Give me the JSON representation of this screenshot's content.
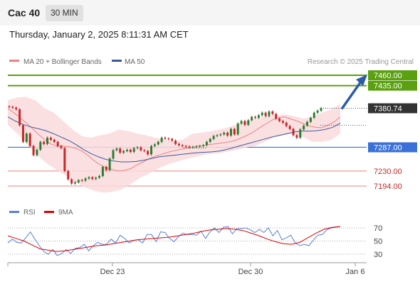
{
  "header": {
    "symbol": "Cac 40",
    "interval": "30 MIN",
    "timestamp": "Thursday, January 2, 2025 8:11:31 AM CET"
  },
  "legend": {
    "ma20_label": "MA 20 + Bollinger Bands",
    "ma50_label": "MA 50",
    "ma20_color": "#f08080",
    "ma50_color": "#3a5a9a",
    "copyright": "Research © 2025 Trading Central"
  },
  "rsi_legend": {
    "rsi_label": "RSI",
    "ma_label": "9MA",
    "rsi_color": "#5a7fd8",
    "ma_color": "#e00000"
  },
  "colors": {
    "up": "#2e7d32",
    "down": "#c62828",
    "resistance": "#5aa010",
    "pivot": "#3a70d8",
    "support": "#f08080",
    "current": "#333333",
    "band": "#fadadd",
    "arrow": "#2a5caa"
  },
  "chart_data": [
    {
      "type": "candlestick",
      "title": "",
      "x_ticks": [
        "Dec 23",
        "Dec 30",
        "Jan 6"
      ],
      "ylim": [
        7175,
        7475
      ],
      "price_levels": [
        {
          "value": 7460.0,
          "label": "7460.00",
          "kind": "resistance"
        },
        {
          "value": 7435.0,
          "label": "7435.00",
          "kind": "resistance"
        },
        {
          "value": 7380.74,
          "label": "7380.74",
          "kind": "current"
        },
        {
          "value": 7287.0,
          "label": "7287.00",
          "kind": "pivot"
        },
        {
          "value": 7230.0,
          "label": "7230.00",
          "kind": "support"
        },
        {
          "value": 7194.0,
          "label": "7194.00",
          "kind": "support"
        }
      ],
      "closes": [
        7384,
        7382,
        7378,
        7340,
        7300,
        7320,
        7290,
        7268,
        7281,
        7300,
        7295,
        7310,
        7305,
        7300,
        7290,
        7285,
        7230,
        7210,
        7200,
        7203,
        7208,
        7207,
        7212,
        7215,
        7211,
        7214,
        7218,
        7240,
        7232,
        7260,
        7280,
        7284,
        7274,
        7278,
        7281,
        7276,
        7285,
        7287,
        7280,
        7278,
        7270,
        7290,
        7294,
        7300,
        7310,
        7308,
        7307,
        7303,
        7295,
        7292,
        7290,
        7289,
        7287,
        7288,
        7289,
        7290,
        7292,
        7300,
        7307,
        7314,
        7316,
        7318,
        7322,
        7315,
        7331,
        7318,
        7344,
        7350,
        7341,
        7352,
        7360,
        7358,
        7364,
        7370,
        7362,
        7373,
        7367,
        7356,
        7350,
        7346,
        7338,
        7331,
        7316,
        7310,
        7330,
        7339,
        7348,
        7358,
        7370,
        7375,
        7381
      ],
      "ma20": [
        7380,
        7370,
        7358,
        7345,
        7332,
        7318,
        7305,
        7295,
        7290,
        7290,
        7288,
        7285,
        7278,
        7268,
        7255,
        7245,
        7238,
        7233,
        7230,
        7232,
        7236,
        7245,
        7252,
        7260,
        7266,
        7270,
        7275,
        7279,
        7282,
        7285,
        7287,
        7290,
        7292,
        7294,
        7296,
        7298,
        7300,
        7304,
        7310,
        7317,
        7325,
        7335,
        7344,
        7353,
        7358,
        7360,
        7355,
        7350,
        7344,
        7338,
        7335,
        7334,
        7340,
        7348,
        7360
      ],
      "ma50": [
        7360,
        7350,
        7342,
        7336,
        7332,
        7327,
        7320,
        7312,
        7304,
        7294,
        7282,
        7272,
        7264,
        7258,
        7254,
        7252,
        7252,
        7253,
        7256,
        7260,
        7264,
        7266,
        7268,
        7270,
        7272,
        7274,
        7275,
        7276,
        7278,
        7282,
        7287,
        7292,
        7297,
        7302,
        7307,
        7312,
        7316,
        7320,
        7324,
        7326,
        7326,
        7327,
        7330,
        7335,
        7345
      ],
      "bollinger_upper": [
        7400,
        7407,
        7408,
        7400,
        7380,
        7370,
        7350,
        7330,
        7314,
        7310,
        7316,
        7320,
        7330,
        7326,
        7320,
        7316,
        7310,
        7306,
        7300,
        7306,
        7320,
        7322,
        7326,
        7330,
        7336,
        7344,
        7350,
        7358,
        7362,
        7364,
        7366,
        7362,
        7356,
        7360,
        7370,
        7378,
        7392
      ],
      "bollinger_lower": [
        7340,
        7320,
        7296,
        7270,
        7250,
        7235,
        7220,
        7205,
        7192,
        7183,
        7178,
        7180,
        7186,
        7200,
        7215,
        7225,
        7238,
        7247,
        7254,
        7260,
        7265,
        7270,
        7272,
        7276,
        7280,
        7286,
        7290,
        7300,
        7310,
        7316,
        7320,
        7313,
        7300,
        7300,
        7304,
        7320
      ],
      "forecast_arrow": {
        "from": 7380.74,
        "to": 7460
      }
    },
    {
      "type": "line",
      "title": "",
      "ylim": [
        10,
        90
      ],
      "y_ticks": [
        70,
        50,
        30
      ],
      "series": [
        {
          "name": "RSI",
          "values": [
            47,
            53,
            48,
            47,
            55,
            64,
            53,
            43,
            34,
            30,
            37,
            28,
            31,
            37,
            31,
            39,
            40,
            45,
            35,
            43,
            48,
            45,
            45,
            53,
            47,
            59,
            54,
            47,
            51,
            52,
            47,
            60,
            60,
            49,
            64,
            63,
            54,
            49,
            57,
            62,
            60,
            60,
            59,
            65,
            54,
            64,
            70,
            63,
            71,
            72,
            61,
            69,
            69,
            70,
            67,
            63,
            68,
            63,
            70,
            58,
            66,
            52,
            55,
            59,
            47,
            43,
            45,
            43,
            51,
            59,
            60,
            67,
            70,
            71,
            72
          ]
        },
        {
          "name": "9MA",
          "values": [
            58,
            54,
            50,
            44,
            38,
            36,
            34,
            35,
            37,
            39,
            41,
            43,
            44,
            46,
            48,
            50,
            52,
            53,
            54,
            55,
            56,
            58,
            60,
            62,
            65,
            67,
            68,
            69,
            68,
            66,
            62,
            58,
            53,
            49,
            46,
            45,
            48,
            55,
            62,
            68,
            71,
            72
          ]
        }
      ]
    }
  ]
}
